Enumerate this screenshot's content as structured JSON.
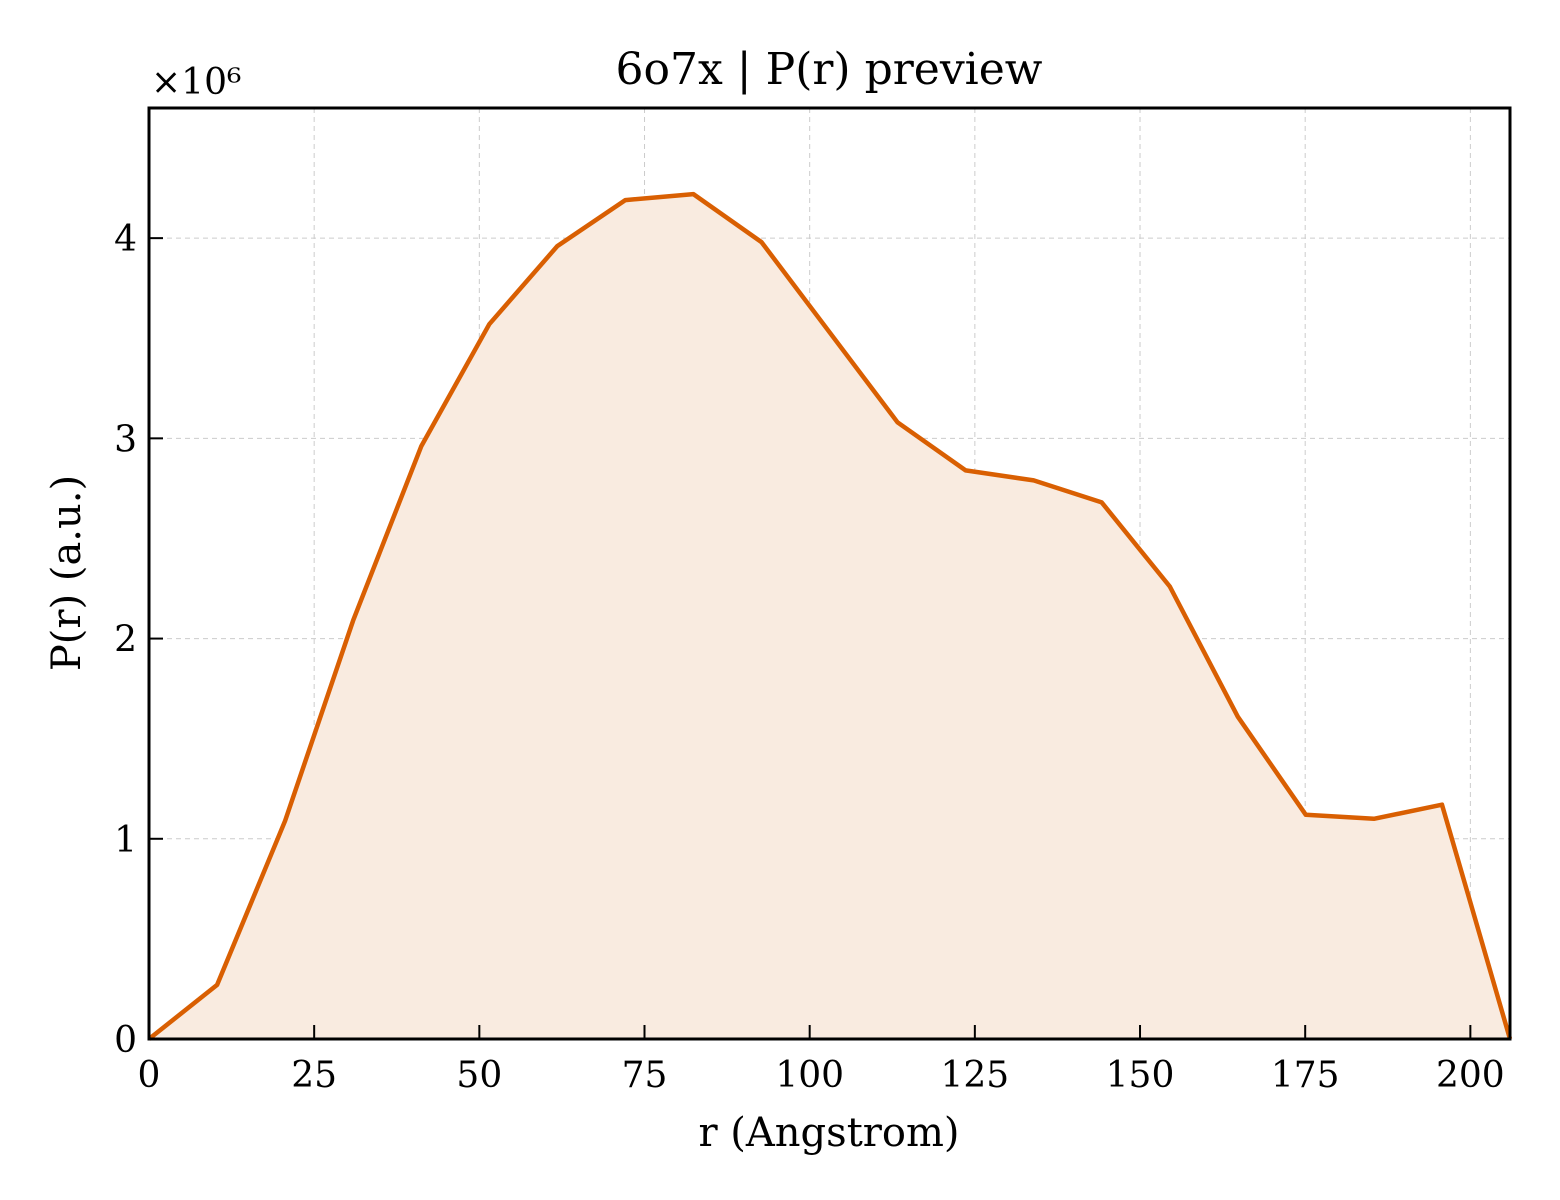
{
  "chart_data": {
    "type": "area",
    "title": "6o7x | P(r) preview",
    "xlabel": "r (Angstrom)",
    "ylabel": "P(r) (a.u.)",
    "y_multiplier_label": "×10⁶",
    "xlim": [
      0,
      206
    ],
    "ylim": [
      0,
      4.65
    ],
    "x_ticks": [
      0,
      25,
      50,
      75,
      100,
      125,
      150,
      175,
      200
    ],
    "x_tick_labels": [
      "0",
      "25",
      "50",
      "75",
      "100",
      "125",
      "150",
      "175",
      "200"
    ],
    "y_ticks": [
      0,
      1,
      2,
      3,
      4
    ],
    "y_tick_labels": [
      "0",
      "1",
      "2",
      "3",
      "4"
    ],
    "grid": true,
    "colors": {
      "line": "#d95f02",
      "fill": "#f9ebe0"
    },
    "series": [
      {
        "x": [
          0,
          10.3,
          20.6,
          30.9,
          41.2,
          51.5,
          61.8,
          72.1,
          82.4,
          92.7,
          103.0,
          113.3,
          123.6,
          133.9,
          144.2,
          154.5,
          164.8,
          175.1,
          185.4,
          195.7,
          206.0
        ],
        "y": [
          0,
          0.27,
          1.09,
          2.09,
          2.96,
          3.57,
          3.96,
          4.19,
          4.22,
          3.98,
          3.53,
          3.08,
          2.84,
          2.79,
          2.68,
          2.26,
          1.61,
          1.12,
          1.1,
          1.17,
          0
        ]
      }
    ]
  }
}
